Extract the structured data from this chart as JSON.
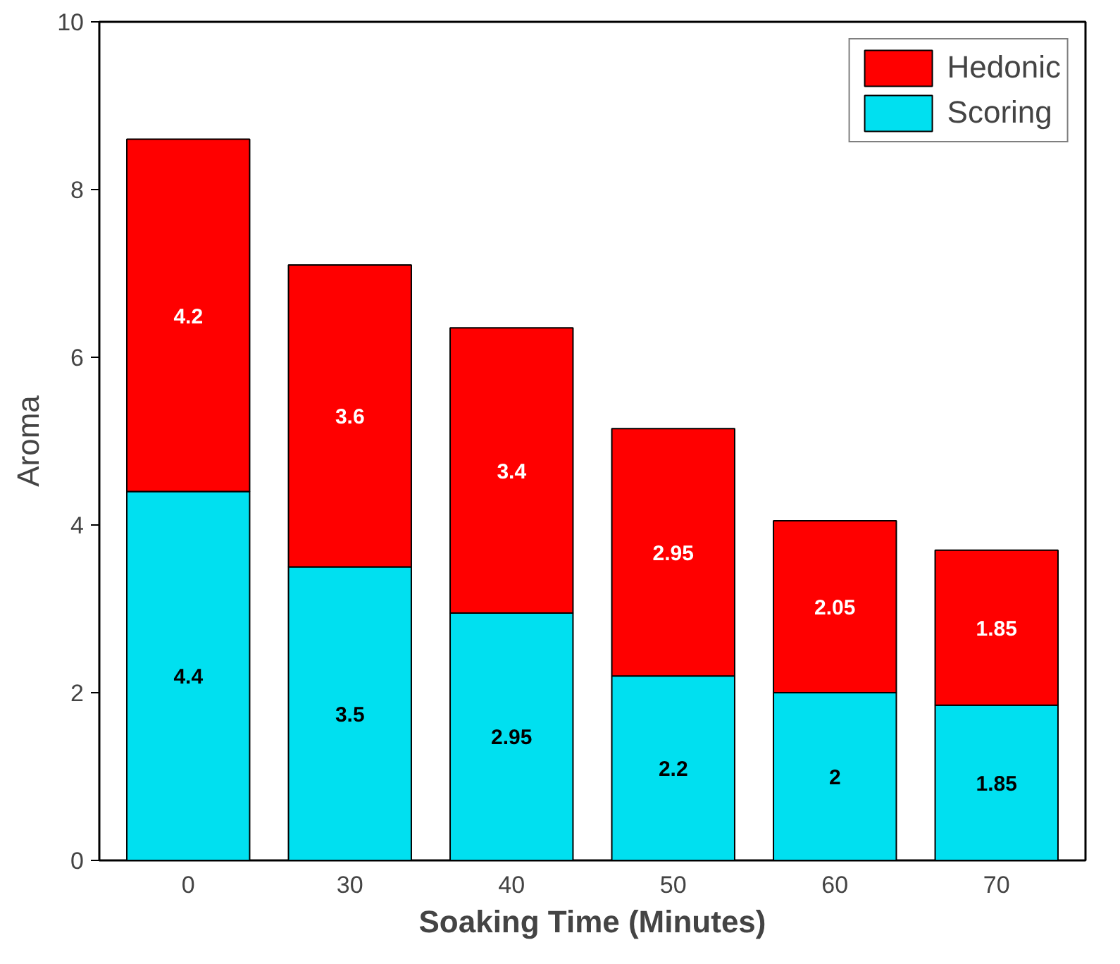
{
  "chart_data": {
    "type": "bar",
    "stacked": true,
    "xlabel": "Soaking Time (Minutes)",
    "ylabel": "Aroma",
    "categories": [
      "0",
      "30",
      "40",
      "50",
      "60",
      "70"
    ],
    "series": [
      {
        "name": "Scoring",
        "color": "#00e0f0",
        "values": [
          4.4,
          3.5,
          2.95,
          2.2,
          2,
          1.85
        ]
      },
      {
        "name": "Hedonic",
        "color": "#ff0000",
        "values": [
          4.2,
          3.6,
          3.4,
          2.95,
          2.05,
          1.85
        ]
      }
    ],
    "ylim": [
      0,
      10
    ],
    "yticks": [
      0,
      2,
      4,
      6,
      8,
      10
    ],
    "grid": false,
    "legend": "top right",
    "data_labels": true
  }
}
